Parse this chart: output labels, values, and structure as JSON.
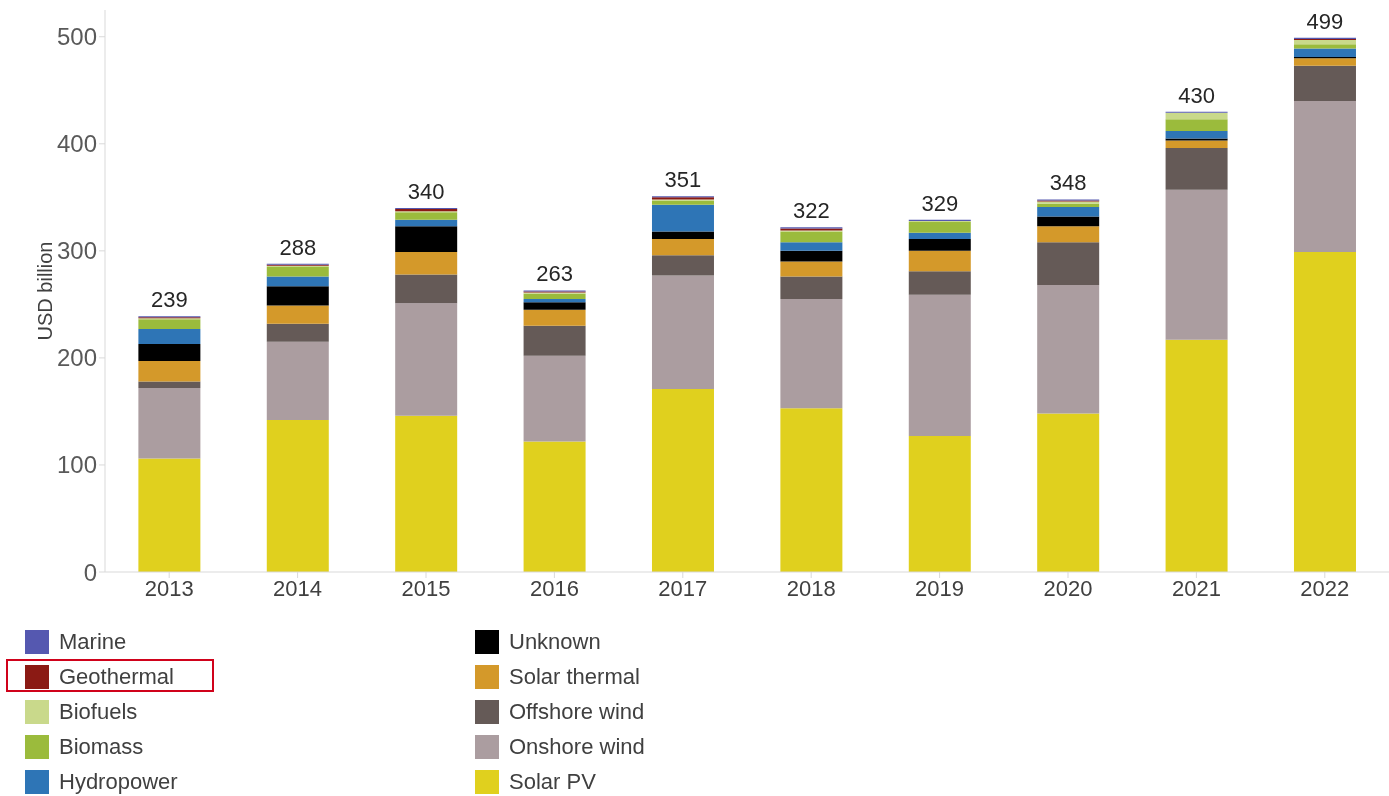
{
  "chart_data": {
    "type": "bar",
    "stacked": true,
    "ylabel": "USD billion",
    "categories": [
      "2013",
      "2014",
      "2015",
      "2016",
      "2017",
      "2018",
      "2019",
      "2020",
      "2021",
      "2022"
    ],
    "series": [
      {
        "name": "Solar PV",
        "color": "#e0d01e",
        "values": [
          106,
          142,
          146,
          122,
          171,
          153,
          127,
          148,
          217,
          299
        ]
      },
      {
        "name": "Onshore wind",
        "color": "#ab9da0",
        "values": [
          66,
          73,
          105,
          80,
          106,
          102,
          132,
          120,
          140,
          141
        ]
      },
      {
        "name": "Offshore wind",
        "color": "#655a57",
        "values": [
          6,
          17,
          27,
          28,
          19,
          21,
          22,
          40,
          39,
          33
        ]
      },
      {
        "name": "Solar thermal",
        "color": "#d4992a",
        "values": [
          19,
          17,
          21,
          15,
          15,
          14,
          19,
          15,
          7,
          7
        ]
      },
      {
        "name": "Unknown",
        "color": "#000000",
        "values": [
          16,
          18,
          24,
          7,
          7,
          10,
          11,
          9,
          2,
          1
        ]
      },
      {
        "name": "Hydropower",
        "color": "#2e75b6",
        "values": [
          14,
          9,
          6,
          3,
          25,
          8,
          6,
          9,
          7,
          8
        ]
      },
      {
        "name": "Biomass",
        "color": "#9bbb3c",
        "values": [
          9,
          9,
          7,
          5,
          4,
          10,
          10,
          3,
          11,
          4
        ]
      },
      {
        "name": "Biofuels",
        "color": "#c9d98b",
        "values": [
          1,
          1,
          1,
          1,
          1,
          1,
          1,
          2,
          6,
          4
        ]
      },
      {
        "name": "Geothermal",
        "color": "#8b1a14",
        "values": [
          1,
          1,
          2,
          1,
          2,
          2,
          0,
          1,
          0,
          1
        ]
      },
      {
        "name": "Marine",
        "color": "#5558b0",
        "values": [
          1,
          1,
          1,
          1,
          1,
          1,
          1,
          1,
          1,
          1
        ]
      }
    ],
    "totals": [
      "239",
      "288",
      "340",
      "263",
      "351",
      "322",
      "329",
      "348",
      "430",
      "499"
    ],
    "ylim": [
      0,
      525
    ],
    "yticks": [
      0,
      100,
      200,
      300,
      400,
      500
    ],
    "grid": false,
    "legend": "bottom"
  }
}
